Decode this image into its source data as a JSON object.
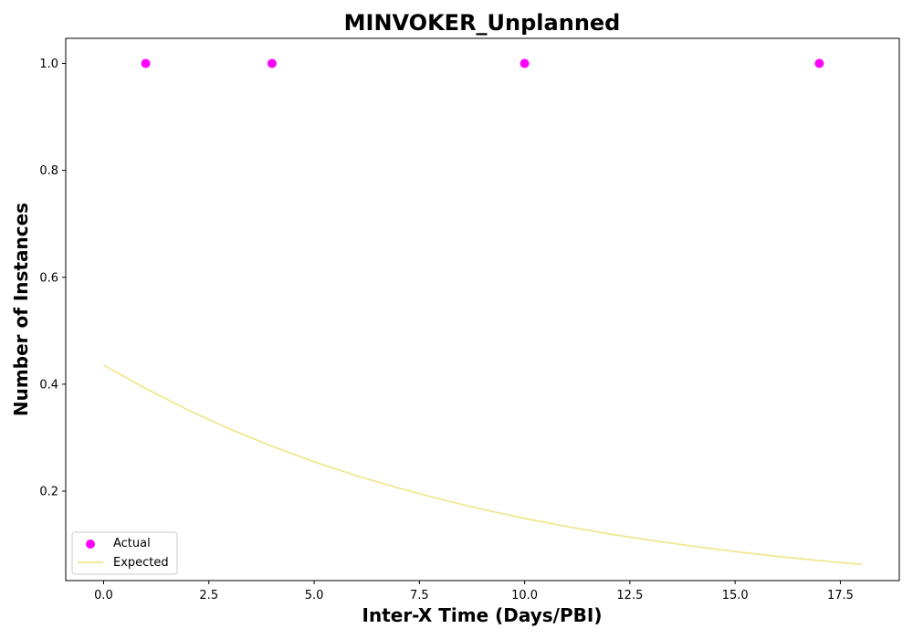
{
  "chart_data": {
    "type": "scatter",
    "title": "MINVOKER_Unplanned",
    "xlabel": "Inter-X Time (Days/PBI)",
    "ylabel": "Number of Instances",
    "xlim": [
      -0.9,
      18.9
    ],
    "ylim": [
      0.0327,
      1.047
    ],
    "x_ticks": [
      0.0,
      2.5,
      5.0,
      7.5,
      10.0,
      12.5,
      15.0,
      17.5
    ],
    "x_tick_labels": [
      "0.0",
      "2.5",
      "5.0",
      "7.5",
      "10.0",
      "12.5",
      "15.0",
      "17.5"
    ],
    "y_ticks": [
      0.2,
      0.4,
      0.6,
      0.8,
      1.0
    ],
    "y_tick_labels": [
      "0.2",
      "0.4",
      "0.6",
      "0.8",
      "1.0"
    ],
    "grid": false,
    "legend_position": "lower-left",
    "series": [
      {
        "name": "Actual",
        "kind": "scatter",
        "color": "#ff00ff",
        "x": [
          1,
          4,
          10,
          17
        ],
        "y": [
          1.0,
          1.0,
          1.0,
          1.0
        ]
      },
      {
        "name": "Expected",
        "kind": "line",
        "color": "#f0e68c",
        "x": [
          0,
          1,
          2,
          3,
          4,
          5,
          6,
          7,
          8,
          9,
          10,
          11,
          12,
          13,
          14,
          15,
          16,
          17,
          18
        ],
        "y": [
          0.436,
          0.392,
          0.352,
          0.316,
          0.284,
          0.255,
          0.229,
          0.206,
          0.185,
          0.166,
          0.149,
          0.134,
          0.12,
          0.108,
          0.097,
          0.087,
          0.078,
          0.07,
          0.063
        ]
      }
    ]
  }
}
